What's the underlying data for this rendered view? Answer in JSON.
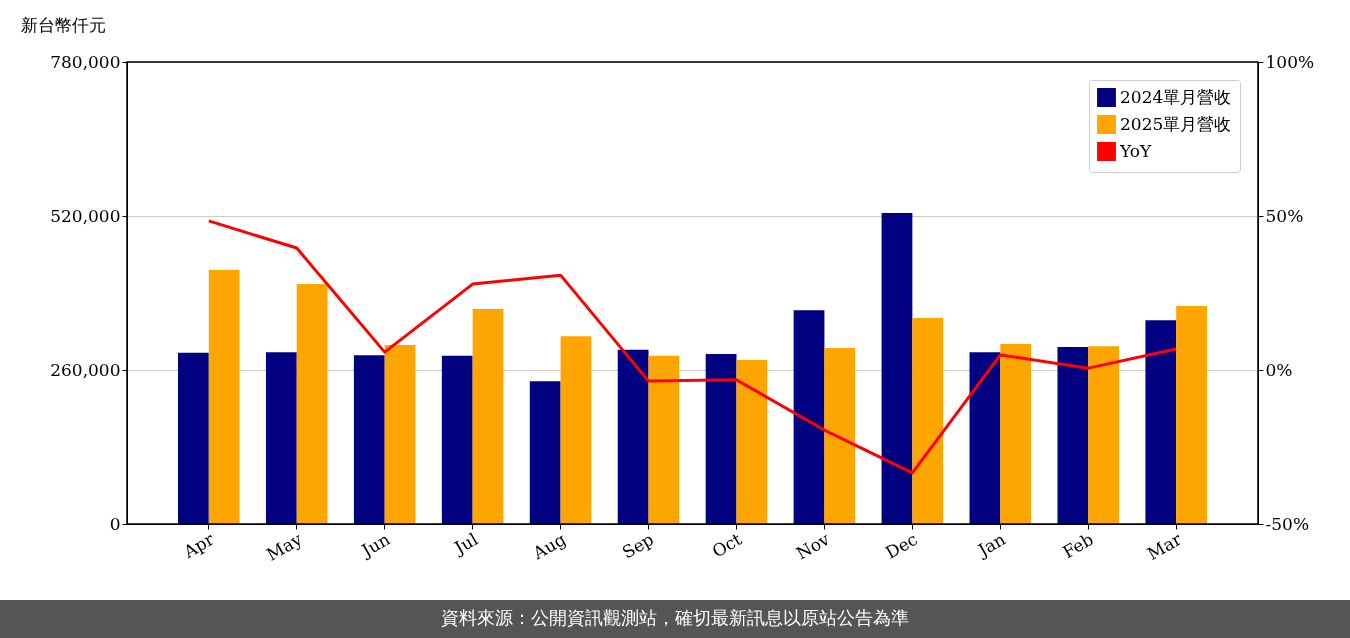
{
  "chart_data": {
    "type": "bar",
    "ylabel": "新台幣仟元",
    "categories": [
      "Apr",
      "May",
      "Jun",
      "Jul",
      "Aug",
      "Sep",
      "Oct",
      "Nov",
      "Dec",
      "Jan",
      "Feb",
      "Mar"
    ],
    "series": [
      {
        "name": "2024單月營收",
        "color": "#000080",
        "values": [
          289000,
          290000,
          285000,
          284000,
          241000,
          294000,
          287000,
          361000,
          525000,
          290000,
          299000,
          344000
        ]
      },
      {
        "name": "2025單月營收",
        "color": "#ffa500",
        "values": [
          429000,
          405000,
          302000,
          363000,
          317000,
          284000,
          277000,
          297000,
          348000,
          304000,
          300000,
          368000
        ]
      },
      {
        "name": "YoY",
        "type": "line",
        "axis": "y2",
        "color": "#ff0000",
        "values": [
          48.4,
          39.6,
          5.8,
          27.9,
          30.8,
          -3.6,
          -3.2,
          -19.5,
          -33.4,
          4.9,
          0.6,
          6.8
        ]
      }
    ],
    "ylim": [
      0,
      780000
    ],
    "yticks": [
      {
        "value": 0,
        "label": "0"
      },
      {
        "value": 260000,
        "label": "260,000"
      },
      {
        "value": 520000,
        "label": "520,000"
      },
      {
        "value": 780000,
        "label": "780,000"
      }
    ],
    "y2lim": [
      -50,
      100
    ],
    "y2ticks": [
      {
        "value": -50,
        "label": "-50%"
      },
      {
        "value": 0,
        "label": "0%"
      },
      {
        "value": 50,
        "label": "50%"
      },
      {
        "value": 100,
        "label": "100%"
      }
    ],
    "grid": "y",
    "legend": "top right",
    "annotations": [
      "資料來源：公開資訊觀測站，確切最新訊息以原站公告為準"
    ]
  }
}
